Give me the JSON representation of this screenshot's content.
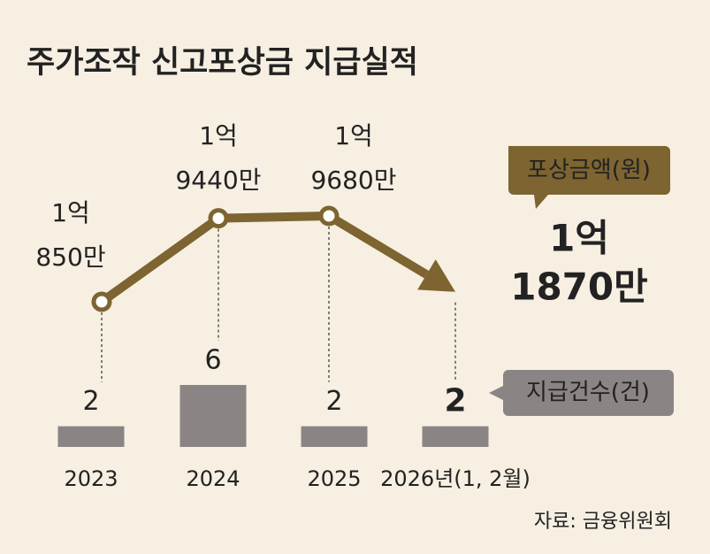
{
  "chart_data": {
    "type": "bar-line",
    "title": "주가조작 신고포상금 지급실적",
    "categories": [
      "2023",
      "2024",
      "2025",
      "2026년(1, 2월)"
    ],
    "series": [
      {
        "name": "포상금액(원)",
        "type": "line",
        "color": "#7d6430",
        "values": [
          108500000,
          194400000,
          196800000,
          118700000
        ],
        "value_labels": [
          [
            "1억",
            "850만"
          ],
          [
            "1억",
            "9440만"
          ],
          [
            "1억",
            "9680만"
          ],
          [
            "1억",
            "1870만"
          ]
        ]
      },
      {
        "name": "지급건수(건)",
        "type": "bar",
        "color": "#8a8584",
        "values": [
          2,
          6,
          2,
          2
        ]
      }
    ],
    "source": "자료: 금융위원회"
  }
}
